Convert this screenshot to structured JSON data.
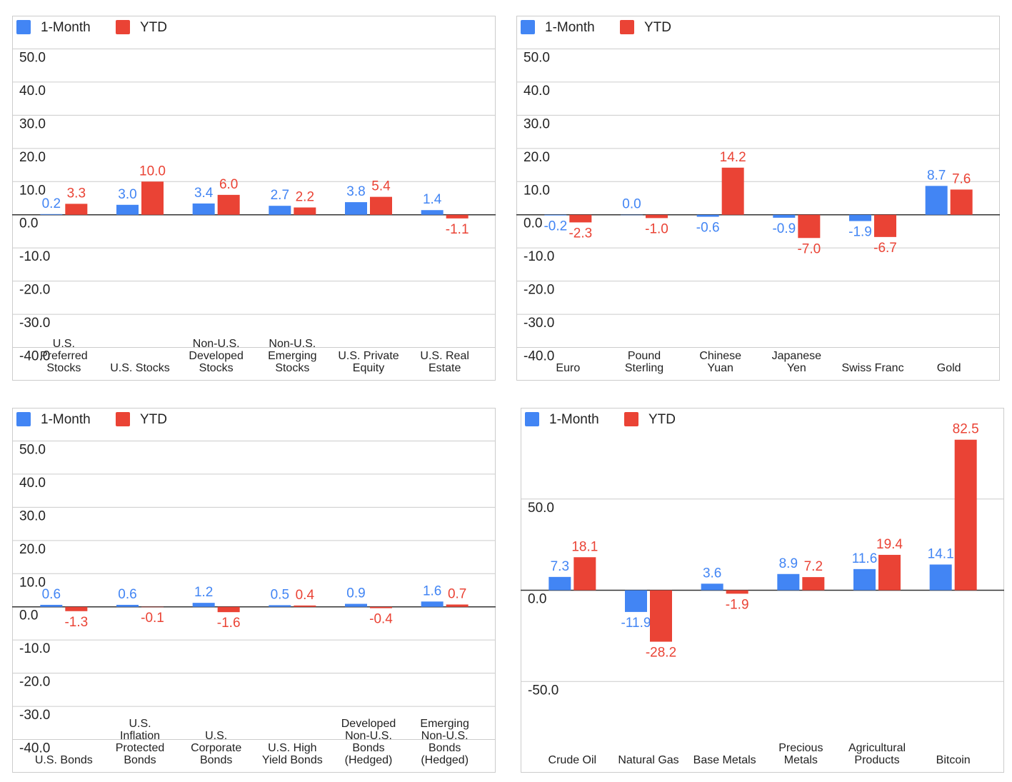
{
  "chart_data": [
    {
      "type": "bar",
      "legend": "top-left",
      "grid": true,
      "categories": [
        [
          "U.S.",
          "Preferred",
          "Stocks"
        ],
        [
          "U.S. Stocks"
        ],
        [
          "Non-U.S.",
          "Developed",
          "Stocks"
        ],
        [
          "Non-U.S.",
          "Emerging",
          "Stocks"
        ],
        [
          "U.S. Private",
          "Equity"
        ],
        [
          "U.S. Real",
          "Estate"
        ]
      ],
      "series": [
        {
          "name": "1-Month",
          "color": "#4285f4",
          "values": [
            0.2,
            3.0,
            3.4,
            2.7,
            3.8,
            1.4
          ],
          "value_labels": [
            "0.2",
            "3.0",
            "3.4",
            "2.7",
            "3.8",
            "1.4"
          ]
        },
        {
          "name": "YTD",
          "color": "#ea4335",
          "values": [
            3.3,
            10.0,
            6.0,
            2.2,
            5.4,
            -1.1
          ],
          "value_labels": [
            "3.3",
            "10.0",
            "6.0",
            "2.2",
            "5.4",
            "-1.1"
          ]
        }
      ],
      "ylim": [
        -50,
        60
      ],
      "yticks": [
        {
          "value": -40,
          "label": "-40.0"
        },
        {
          "value": -30,
          "label": "-30.0"
        },
        {
          "value": -20,
          "label": "-20.0"
        },
        {
          "value": -10,
          "label": "-10.0"
        },
        {
          "value": 0,
          "label": "0.0"
        },
        {
          "value": 10,
          "label": "10.0"
        },
        {
          "value": 20,
          "label": "20.0"
        },
        {
          "value": 30,
          "label": "30.0"
        },
        {
          "value": 40,
          "label": "40.0"
        },
        {
          "value": 50,
          "label": "50.0"
        }
      ]
    },
    {
      "type": "bar",
      "legend": "top-left",
      "grid": true,
      "categories": [
        [
          "Euro"
        ],
        [
          "Pound",
          "Sterling"
        ],
        [
          "Chinese",
          "Yuan"
        ],
        [
          "Japanese",
          "Yen"
        ],
        [
          "Swiss Franc"
        ],
        [
          "Gold"
        ]
      ],
      "series": [
        {
          "name": "1-Month",
          "color": "#4285f4",
          "values": [
            -0.2,
            0.0,
            -0.6,
            -0.9,
            -1.9,
            8.7
          ],
          "value_labels": [
            "-0.2",
            "0.0",
            "-0.6",
            "-0.9",
            "-1.9",
            "8.7"
          ]
        },
        {
          "name": "YTD",
          "color": "#ea4335",
          "values": [
            -2.3,
            -1.0,
            14.2,
            -7.0,
            -6.7,
            7.6
          ],
          "value_labels": [
            "-2.3",
            "-1.0",
            "14.2",
            "-7.0",
            "-6.7",
            "7.6"
          ]
        }
      ],
      "ylim": [
        -50,
        60
      ],
      "yticks": [
        {
          "value": -40,
          "label": "-40.0"
        },
        {
          "value": -30,
          "label": "-30.0"
        },
        {
          "value": -20,
          "label": "-20.0"
        },
        {
          "value": -10,
          "label": "-10.0"
        },
        {
          "value": 0,
          "label": "0.0"
        },
        {
          "value": 10,
          "label": "10.0"
        },
        {
          "value": 20,
          "label": "20.0"
        },
        {
          "value": 30,
          "label": "30.0"
        },
        {
          "value": 40,
          "label": "40.0"
        },
        {
          "value": 50,
          "label": "50.0"
        }
      ]
    },
    {
      "type": "bar",
      "legend": "top-left",
      "grid": true,
      "categories": [
        [
          "U.S. Bonds"
        ],
        [
          "U.S.",
          "Inflation",
          "Protected",
          "Bonds"
        ],
        [
          "U.S.",
          "Corporate",
          "Bonds"
        ],
        [
          "U.S. High",
          "Yield Bonds"
        ],
        [
          "Developed",
          "Non-U.S.",
          "Bonds",
          "(Hedged)"
        ],
        [
          "Emerging",
          "Non-U.S.",
          "Bonds",
          "(Hedged)"
        ]
      ],
      "series": [
        {
          "name": "1-Month",
          "color": "#4285f4",
          "values": [
            0.6,
            0.6,
            1.2,
            0.5,
            0.9,
            1.6
          ],
          "value_labels": [
            "0.6",
            "0.6",
            "1.2",
            "0.5",
            "0.9",
            "1.6"
          ]
        },
        {
          "name": "YTD",
          "color": "#ea4335",
          "values": [
            -1.3,
            -0.1,
            -1.6,
            0.4,
            -0.4,
            0.7
          ],
          "value_labels": [
            "-1.3",
            "-0.1",
            "-1.6",
            "0.4",
            "-0.4",
            "0.7"
          ]
        }
      ],
      "ylim": [
        -50,
        60
      ],
      "yticks": [
        {
          "value": -40,
          "label": "-40.0"
        },
        {
          "value": -30,
          "label": "-30.0"
        },
        {
          "value": -20,
          "label": "-20.0"
        },
        {
          "value": -10,
          "label": "-10.0"
        },
        {
          "value": 0,
          "label": "0.0"
        },
        {
          "value": 10,
          "label": "10.0"
        },
        {
          "value": 20,
          "label": "20.0"
        },
        {
          "value": 30,
          "label": "30.0"
        },
        {
          "value": 40,
          "label": "40.0"
        },
        {
          "value": 50,
          "label": "50.0"
        }
      ]
    },
    {
      "type": "bar",
      "legend": "top-left",
      "grid": true,
      "categories": [
        [
          "Crude Oil"
        ],
        [
          "Natural Gas"
        ],
        [
          "Base Metals"
        ],
        [
          "Precious",
          "Metals"
        ],
        [
          "Agricultural",
          "Products"
        ],
        [
          "Bitcoin"
        ]
      ],
      "series": [
        {
          "name": "1-Month",
          "color": "#4285f4",
          "values": [
            7.3,
            -11.9,
            3.6,
            8.9,
            11.6,
            14.1
          ],
          "value_labels": [
            "7.3",
            "-11.9",
            "3.6",
            "8.9",
            "11.6",
            "14.1"
          ]
        },
        {
          "name": "YTD",
          "color": "#ea4335",
          "values": [
            18.1,
            -28.2,
            -1.9,
            7.2,
            19.4,
            82.5
          ],
          "value_labels": [
            "18.1",
            "-28.2",
            "-1.9",
            "7.2",
            "19.4",
            "82.5"
          ]
        }
      ],
      "ylim": [
        -100,
        100
      ],
      "yticks": [
        {
          "value": -50,
          "label": "-50.0"
        },
        {
          "value": 0,
          "label": "0.0"
        },
        {
          "value": 50,
          "label": "50.0"
        }
      ]
    }
  ]
}
